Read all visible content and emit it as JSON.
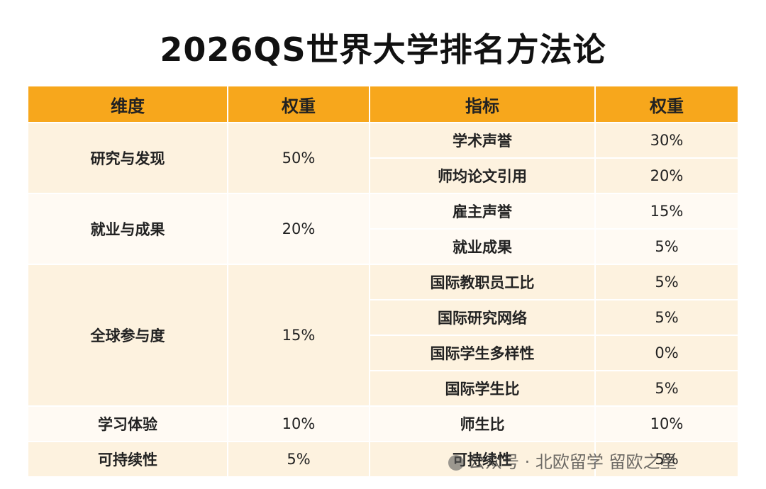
{
  "title": "2026QS世界大学排名方法论",
  "header": [
    "维度",
    "权重",
    "指标",
    "权重"
  ],
  "groups": [
    {
      "dimension": "研究与发现",
      "weight": "50%",
      "indicators": [
        {
          "name": "学术声誉",
          "weight": "30%"
        },
        {
          "name": "师均论文引用",
          "weight": "20%"
        }
      ]
    },
    {
      "dimension": "就业与成果",
      "weight": "20%",
      "indicators": [
        {
          "name": "雇主声誉",
          "weight": "15%"
        },
        {
          "name": "就业成果",
          "weight": "5%"
        }
      ]
    },
    {
      "dimension": "全球参与度",
      "weight": "15%",
      "indicators": [
        {
          "name": "国际教职员工比",
          "weight": "5%"
        },
        {
          "name": "国际研究网络",
          "weight": "5%"
        },
        {
          "name": "国际学生多样性",
          "weight": "0%"
        },
        {
          "name": "国际学生比",
          "weight": "5%"
        }
      ]
    },
    {
      "dimension": "学习体验",
      "weight": "10%",
      "indicators": [
        {
          "name": "师生比",
          "weight": "10%"
        }
      ]
    },
    {
      "dimension": "可持续性",
      "weight": "5%",
      "indicators": [
        {
          "name": "可持续性",
          "weight": "5%"
        }
      ]
    }
  ],
  "watermark": "公众号 · 北欧留学 留欧之星"
}
